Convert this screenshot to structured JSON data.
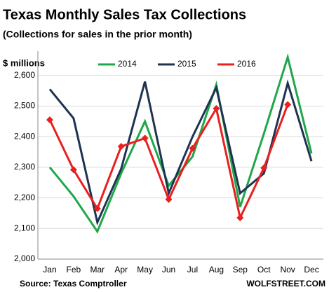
{
  "chart_data": {
    "type": "line",
    "title": "Texas Monthly Sales Tax Collections",
    "subtitle": "(Collections for sales in the prior month)",
    "ylabel": "$ millions",
    "source": "Source: Texas Comptroller",
    "credit": "WOLFSTREET.COM",
    "categories": [
      "Jan",
      "Feb",
      "Mar",
      "Apr",
      "May",
      "Jun",
      "Jul",
      "Aug",
      "Sep",
      "Oct",
      "Nov",
      "Dec"
    ],
    "series": [
      {
        "name": "2014",
        "color": "#1fa84a",
        "markers": false,
        "values": [
          2300,
          2205,
          2090,
          2280,
          2450,
          2240,
          2335,
          2570,
          2170,
          2410,
          2660,
          2345
        ]
      },
      {
        "name": "2015",
        "color": "#1f3350",
        "markers": false,
        "values": [
          2555,
          2460,
          2120,
          2295,
          2580,
          2215,
          2400,
          2560,
          2215,
          2280,
          2575,
          2320
        ]
      },
      {
        "name": "2016",
        "color": "#e8201f",
        "markers": true,
        "values": [
          2455,
          2292,
          2165,
          2368,
          2395,
          2195,
          2362,
          2492,
          2135,
          2298,
          2505,
          null
        ]
      }
    ],
    "ylim": [
      2000,
      2680
    ],
    "yticks": [
      {
        "value": 2000,
        "label": "2,000"
      },
      {
        "value": 2100,
        "label": "2,100"
      },
      {
        "value": 2200,
        "label": "2,200"
      },
      {
        "value": 2300,
        "label": "2,300"
      },
      {
        "value": 2400,
        "label": "2,400"
      },
      {
        "value": 2500,
        "label": "2,500"
      },
      {
        "value": 2600,
        "label": "2,600"
      }
    ],
    "grid": true,
    "legend": "top"
  }
}
